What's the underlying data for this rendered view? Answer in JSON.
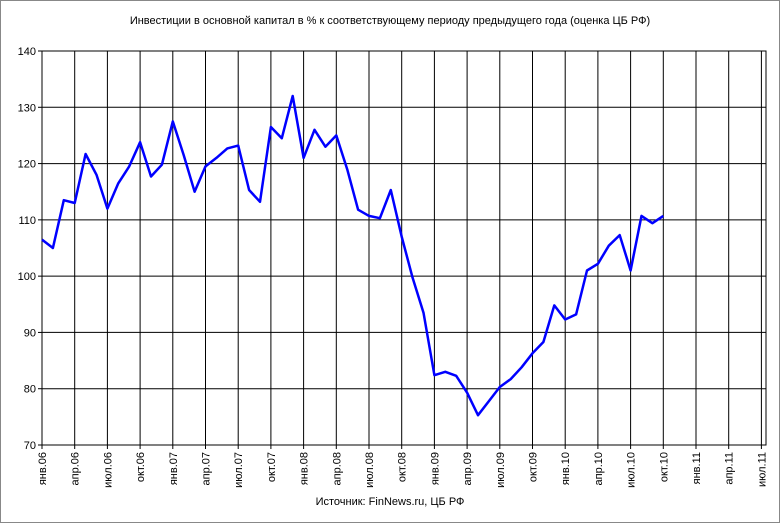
{
  "chart_data": {
    "type": "line",
    "title": "Инвестиции в основной капитал в % к соответствующему периоду предыдущего года (оценка ЦБ РФ)",
    "source": "Источник: FinNews.ru, ЦБ РФ",
    "categories": [
      "янв.06",
      null,
      null,
      "апр.06",
      null,
      null,
      "июл.06",
      null,
      null,
      "окт.06",
      null,
      null,
      "янв.07",
      null,
      null,
      "апр.07",
      null,
      null,
      "июл.07",
      null,
      null,
      "окт.07",
      null,
      null,
      "янв.08",
      null,
      null,
      "апр.08",
      null,
      null,
      "июл.08",
      null,
      null,
      "окт.08",
      null,
      null,
      "янв.09",
      null,
      null,
      "апр.09",
      null,
      null,
      "июл.09",
      null,
      null,
      "окт.09",
      null,
      null,
      "янв.10",
      null,
      null,
      "апр.10",
      null,
      null,
      "июл.10",
      null,
      null,
      "окт.10",
      null,
      null,
      "янв.11",
      null,
      null,
      "апр.11",
      null,
      null,
      "июл.11"
    ],
    "series": [
      {
        "color": "#0000ff",
        "values": [
          106.5,
          105,
          113.5,
          113,
          121.7,
          118,
          112,
          116.5,
          119.5,
          123.8,
          117.7,
          119.8,
          127.5,
          121.5,
          115,
          119.5,
          121,
          122.7,
          123.2,
          115.3,
          113.2,
          126.5,
          124.5,
          132,
          121,
          126,
          123,
          125,
          119,
          111.8,
          110.7,
          110.3,
          115.3,
          107,
          99.7,
          93.5,
          82.4,
          83,
          82.3,
          79.3,
          75.3,
          77.8,
          80.3,
          81.7,
          83.8,
          86.3,
          88.3,
          94.8,
          92.3,
          93.2,
          101,
          102.2,
          105.4,
          107.3,
          101,
          110.7,
          109.4,
          110.7,
          null,
          null,
          null,
          null,
          null,
          null,
          null,
          null,
          null
        ]
      }
    ],
    "ylim": [
      70,
      140
    ],
    "yticks": [
      70,
      80,
      90,
      100,
      110,
      120,
      130,
      140
    ],
    "grid": true
  }
}
